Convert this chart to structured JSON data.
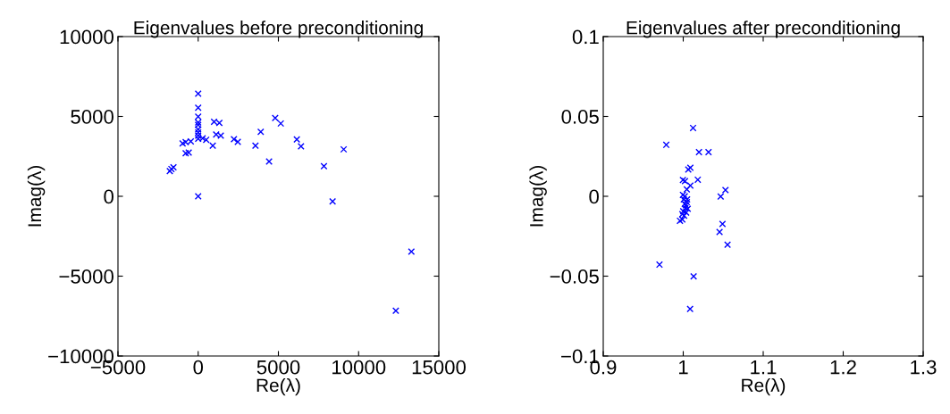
{
  "chart_data": [
    {
      "type": "scatter",
      "title": "Eigenvalues before preconditioning",
      "xlabel": "Re(λ)",
      "ylabel": "Imag(λ)",
      "marker": "cross",
      "grid": false,
      "xlim": [
        -5000,
        15000
      ],
      "xticks": [
        -5000,
        0,
        5000,
        10000,
        15000
      ],
      "ylim": [
        -10000,
        10000
      ],
      "yticks": [
        -10000,
        -5000,
        0,
        5000,
        10000
      ],
      "series": [
        {
          "color": "#0000ff",
          "x": [
            0,
            0,
            0,
            0,
            0,
            0,
            0,
            0,
            0,
            0,
            -1770,
            -1670,
            -1540,
            -970,
            -780,
            -460,
            -780,
            -590,
            280,
            500,
            910,
            990,
            1320,
            1120,
            1410,
            2230,
            2470,
            3570,
            3900,
            4420,
            4800,
            5150,
            6150,
            6410,
            7840,
            8380,
            9070,
            12320,
            13290
          ],
          "values": [
            6420,
            5550,
            4990,
            4620,
            4470,
            4190,
            4000,
            3800,
            3600,
            0,
            1580,
            1710,
            1820,
            3310,
            3390,
            3430,
            2700,
            2740,
            3630,
            3540,
            3170,
            4660,
            4600,
            3870,
            3800,
            3580,
            3410,
            3170,
            4040,
            2180,
            4900,
            4560,
            3560,
            3130,
            1880,
            -320,
            2940,
            -7170,
            -3460
          ]
        }
      ]
    },
    {
      "type": "scatter",
      "title": "Eigenvalues after preconditioning",
      "xlabel": "Re(λ)",
      "ylabel": "Imag(λ)",
      "marker": "cross",
      "grid": false,
      "xlim": [
        0.9,
        1.3
      ],
      "xticks": [
        0.9,
        1,
        1.1,
        1.2,
        1.3
      ],
      "ylim": [
        -0.1,
        0.1
      ],
      "yticks": [
        -0.1,
        -0.05,
        0,
        0.05,
        0.1
      ],
      "series": [
        {
          "color": "#0000ff",
          "x": [
            1.0123,
            0.9788,
            1.0197,
            1.0316,
            1.0063,
            1.0089,
            0.9996,
            1.0022,
            1.0182,
            1.0089,
            1.0045,
            1.0528,
            1.0468,
            1.0491,
            1.0454,
            1.0554,
            0.9703,
            1.013,
            1.0086,
            0.9959,
            0.9989,
            0.9996,
            1.0007,
            1.0019,
            1.0026,
            1.0033,
            1.0045,
            1.0056,
            0.9989,
            1.0,
            1.0011,
            1.0037,
            1.0019,
            1.0048
          ],
          "values": [
            0.0428,
            0.0322,
            0.0277,
            0.0277,
            0.0167,
            0.0179,
            0.0102,
            0.0095,
            0.0104,
            0.0067,
            0.0043,
            0.0039,
            -0.0002,
            -0.0173,
            -0.0223,
            -0.0303,
            -0.0428,
            -0.0502,
            -0.0705,
            -0.0153,
            -0.0145,
            0.0009,
            -0.0019,
            -0.0047,
            -0.0074,
            -0.0056,
            -0.0037,
            -0.0078,
            -0.0112,
            -0.0093,
            -0.0121,
            -0.0102,
            0.0,
            -0.0019
          ]
        }
      ]
    }
  ]
}
